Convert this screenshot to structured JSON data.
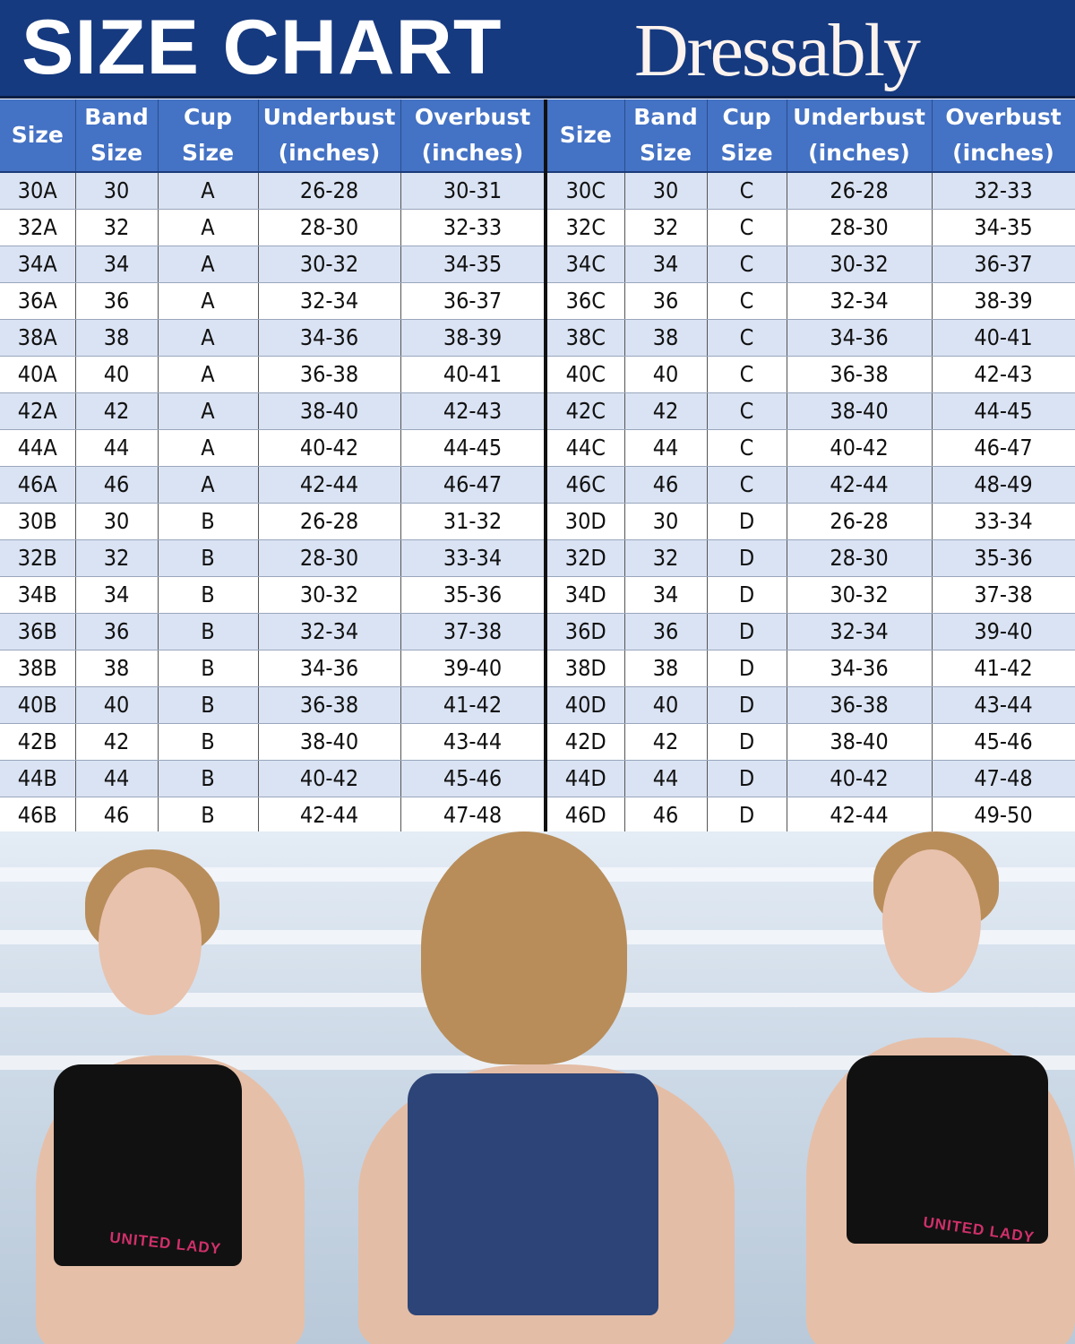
{
  "header": {
    "title": "SIZE CHART",
    "brand": "Dressably"
  },
  "columns": [
    "Size",
    "Band Size",
    "Cup Size",
    "Underbust (inches)",
    "Overbust (inches)"
  ],
  "columns_display": [
    [
      "Size",
      ""
    ],
    [
      "Band",
      "Size"
    ],
    [
      "Cup",
      "Size"
    ],
    [
      "Underbust",
      "(inches)"
    ],
    [
      "Overbust",
      "(inches)"
    ]
  ],
  "colors": {
    "banner": "#163a80",
    "header_row": "#4472c4",
    "alt_row": "#dae3f3"
  },
  "left_table": [
    [
      "30A",
      "30",
      "A",
      "26-28",
      "30-31"
    ],
    [
      "32A",
      "32",
      "A",
      "28-30",
      "32-33"
    ],
    [
      "34A",
      "34",
      "A",
      "30-32",
      "34-35"
    ],
    [
      "36A",
      "36",
      "A",
      "32-34",
      "36-37"
    ],
    [
      "38A",
      "38",
      "A",
      "34-36",
      "38-39"
    ],
    [
      "40A",
      "40",
      "A",
      "36-38",
      "40-41"
    ],
    [
      "42A",
      "42",
      "A",
      "38-40",
      "42-43"
    ],
    [
      "44A",
      "44",
      "A",
      "40-42",
      "44-45"
    ],
    [
      "46A",
      "46",
      "A",
      "42-44",
      "46-47"
    ],
    [
      "30B",
      "30",
      "B",
      "26-28",
      "31-32"
    ],
    [
      "32B",
      "32",
      "B",
      "28-30",
      "33-34"
    ],
    [
      "34B",
      "34",
      "B",
      "30-32",
      "35-36"
    ],
    [
      "36B",
      "36",
      "B",
      "32-34",
      "37-38"
    ],
    [
      "38B",
      "38",
      "B",
      "34-36",
      "39-40"
    ],
    [
      "40B",
      "40",
      "B",
      "36-38",
      "41-42"
    ],
    [
      "42B",
      "42",
      "B",
      "38-40",
      "43-44"
    ],
    [
      "44B",
      "44",
      "B",
      "40-42",
      "45-46"
    ],
    [
      "46B",
      "46",
      "B",
      "42-44",
      "47-48"
    ]
  ],
  "right_table": [
    [
      "30C",
      "30",
      "C",
      "26-28",
      "32-33"
    ],
    [
      "32C",
      "32",
      "C",
      "28-30",
      "34-35"
    ],
    [
      "34C",
      "34",
      "C",
      "30-32",
      "36-37"
    ],
    [
      "36C",
      "36",
      "C",
      "32-34",
      "38-39"
    ],
    [
      "38C",
      "38",
      "C",
      "34-36",
      "40-41"
    ],
    [
      "40C",
      "40",
      "C",
      "36-38",
      "42-43"
    ],
    [
      "42C",
      "42",
      "C",
      "38-40",
      "44-45"
    ],
    [
      "44C",
      "44",
      "C",
      "40-42",
      "46-47"
    ],
    [
      "46C",
      "46",
      "C",
      "42-44",
      "48-49"
    ],
    [
      "30D",
      "30",
      "D",
      "26-28",
      "33-34"
    ],
    [
      "32D",
      "32",
      "D",
      "28-30",
      "35-36"
    ],
    [
      "34D",
      "34",
      "D",
      "30-32",
      "37-38"
    ],
    [
      "36D",
      "36",
      "D",
      "32-34",
      "39-40"
    ],
    [
      "38D",
      "38",
      "D",
      "34-36",
      "41-42"
    ],
    [
      "40D",
      "40",
      "D",
      "36-38",
      "43-44"
    ],
    [
      "42D",
      "42",
      "D",
      "38-40",
      "45-46"
    ],
    [
      "44D",
      "44",
      "D",
      "40-42",
      "47-48"
    ],
    [
      "46D",
      "46",
      "D",
      "42-44",
      "49-50"
    ]
  ],
  "photo": {
    "bra_label": "UNITED LADY"
  }
}
